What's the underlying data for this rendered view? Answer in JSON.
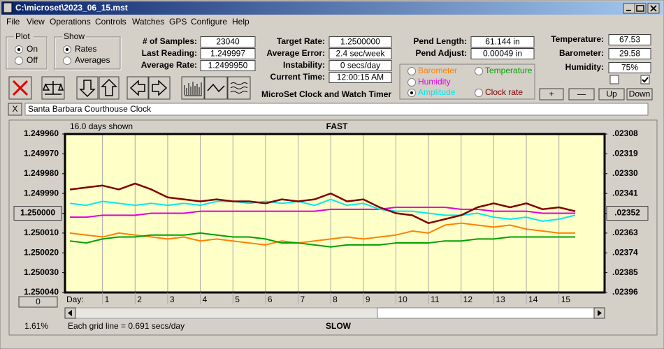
{
  "window": {
    "title": "C:\\microset\\2023_06_15.mst"
  },
  "menu": [
    "File",
    "View",
    "Operations",
    "Controls",
    "Watches",
    "GPS",
    "Configure",
    "Help"
  ],
  "plot": {
    "label": "Plot",
    "options": [
      "On",
      "Off"
    ]
  },
  "show": {
    "label": "Show",
    "options": [
      "Rates",
      "Averages"
    ]
  },
  "fields_left": [
    {
      "label": "# of Samples:",
      "value": "23040"
    },
    {
      "label": "Last Reading:",
      "value": "1.249997"
    },
    {
      "label": "Average Rate:",
      "value": "1.2499950"
    }
  ],
  "fields_mid": [
    {
      "label": "Target Rate:",
      "value": "1.2500000"
    },
    {
      "label": "Average Error:",
      "value": "2.4 sec/week"
    },
    {
      "label": "Instability:",
      "value": "0 secs/day"
    },
    {
      "label": "Current Time:",
      "value": "12:00:15 AM"
    }
  ],
  "app_name": "MicroSet Clock and Watch Timer",
  "fields_pend": [
    {
      "label": "Pend Length:",
      "value": "61.144 in"
    },
    {
      "label": "Pend Adjust:",
      "value": "0.00049 in"
    }
  ],
  "fields_env": [
    {
      "label": "Temperature:",
      "value": "67.53"
    },
    {
      "label": "Barometer:",
      "value": "29.58"
    },
    {
      "label": "Humidity:",
      "value": "75%"
    }
  ],
  "buttons": [
    "+",
    "—",
    "Up",
    "Down"
  ],
  "close_button": "X",
  "clock_name": "Santa Barbara Courthouse Clock",
  "chart_data": {
    "type": "line",
    "title": "FAST",
    "bottom_title": "SLOW",
    "days_shown": "16.0 days shown",
    "x_label": "Day:",
    "grid_note": "Each grid line = 0.691 secs/day",
    "corner_label": "1.61%",
    "reset_button": "0",
    "x": [
      0,
      0.5,
      1,
      1.5,
      2,
      2.5,
      3,
      3.5,
      4,
      4.5,
      5,
      5.5,
      6,
      6.5,
      7,
      7.5,
      8,
      8.5,
      9,
      9.5,
      10,
      10.5,
      11,
      11.5,
      12,
      12.5,
      13,
      13.5,
      14,
      14.5,
      15,
      15.5
    ],
    "xlim": [
      -0.15,
      16.4
    ],
    "xticks": [
      1,
      2,
      3,
      4,
      5,
      6,
      7,
      8,
      9,
      10,
      11,
      12,
      13,
      14,
      15
    ],
    "ylim": [
      1.24996,
      1.25004
    ],
    "invert_y": true,
    "yticks": [
      {
        "value": 1.24996,
        "label": "1.249960"
      },
      {
        "value": 1.24997,
        "label": "1.249970"
      },
      {
        "value": 1.24998,
        "label": "1.249980"
      },
      {
        "value": 1.24999,
        "label": "1.249990"
      },
      {
        "value": 1.25,
        "label": "1.250000"
      },
      {
        "value": 1.25001,
        "label": "1.250010"
      },
      {
        "value": 1.25002,
        "label": "1.250020"
      },
      {
        "value": 1.25003,
        "label": "1.250030"
      },
      {
        "value": 1.25004,
        "label": "1.250040"
      }
    ],
    "y2lim": [
      0.02308,
      0.02396
    ],
    "y2ticks": [
      {
        "value": 0.02308,
        "label": ".02308"
      },
      {
        "value": 0.02319,
        "label": ".02319"
      },
      {
        "value": 0.0233,
        "label": ".02330"
      },
      {
        "value": 0.02341,
        "label": ".02341"
      },
      {
        "value": 0.02352,
        "label": ".02352"
      },
      {
        "value": 0.02363,
        "label": ".02363"
      },
      {
        "value": 0.02374,
        "label": ".02374"
      },
      {
        "value": 0.02385,
        "label": ".02385"
      },
      {
        "value": 0.02396,
        "label": ".02396"
      }
    ],
    "grid": "x",
    "series": [
      {
        "name": "Barometer",
        "color": "#ff8000",
        "values": [
          1.25001,
          1.250011,
          1.250012,
          1.25001,
          1.250011,
          1.250012,
          1.250013,
          1.250012,
          1.250014,
          1.250013,
          1.250014,
          1.250015,
          1.250016,
          1.250014,
          1.250015,
          1.250014,
          1.250013,
          1.250012,
          1.250013,
          1.250012,
          1.250011,
          1.250009,
          1.25001,
          1.250006,
          1.250005,
          1.250006,
          1.250007,
          1.250006,
          1.250008,
          1.250009,
          1.25001,
          1.25001
        ]
      },
      {
        "name": "Temperature",
        "color": "#00a000",
        "values": [
          1.250014,
          1.250015,
          1.250013,
          1.250012,
          1.250012,
          1.250011,
          1.250011,
          1.250011,
          1.25001,
          1.250011,
          1.250012,
          1.250012,
          1.250013,
          1.250015,
          1.250015,
          1.250016,
          1.250017,
          1.250016,
          1.250016,
          1.250016,
          1.250015,
          1.250015,
          1.250015,
          1.250014,
          1.250014,
          1.250013,
          1.250013,
          1.250012,
          1.250012,
          1.250012,
          1.250012,
          1.250012
        ]
      },
      {
        "name": "Humidity",
        "color": "#e000e0",
        "values": [
          1.250002,
          1.250002,
          1.250001,
          1.250001,
          1.250001,
          1.25,
          1.25,
          1.25,
          1.249999,
          1.249999,
          1.249999,
          1.249999,
          1.249999,
          1.249999,
          1.249999,
          1.249999,
          1.249998,
          1.249998,
          1.249998,
          1.249998,
          1.249997,
          1.249997,
          1.249997,
          1.249997,
          1.249998,
          1.249998,
          1.249999,
          1.249999,
          1.249999,
          1.25,
          1.25,
          1.25
        ]
      },
      {
        "name": "Amplitude",
        "color": "#00e8f0",
        "values": [
          1.249995,
          1.249996,
          1.249994,
          1.249995,
          1.249996,
          1.249995,
          1.249996,
          1.249995,
          1.249996,
          1.249994,
          1.249994,
          1.249995,
          1.249994,
          1.249995,
          1.249994,
          1.249996,
          1.249993,
          1.249996,
          1.249995,
          1.249998,
          1.249999,
          1.249999,
          1.25,
          1.250001,
          1.250001,
          1.25,
          1.250002,
          1.250003,
          1.250002,
          1.250004,
          1.250003,
          1.250001
        ]
      },
      {
        "name": "Clock rate",
        "color": "#800000",
        "values": [
          1.249988,
          1.249987,
          1.249986,
          1.249988,
          1.249985,
          1.249988,
          1.249992,
          1.249993,
          1.249994,
          1.249993,
          1.249994,
          1.249994,
          1.249995,
          1.249993,
          1.249994,
          1.249993,
          1.24999,
          1.249994,
          1.249993,
          1.249997,
          1.25,
          1.250001,
          1.250005,
          1.250003,
          1.250001,
          1.249997,
          1.249995,
          1.249997,
          1.249995,
          1.249998,
          1.249997,
          1.249999
        ]
      }
    ]
  }
}
